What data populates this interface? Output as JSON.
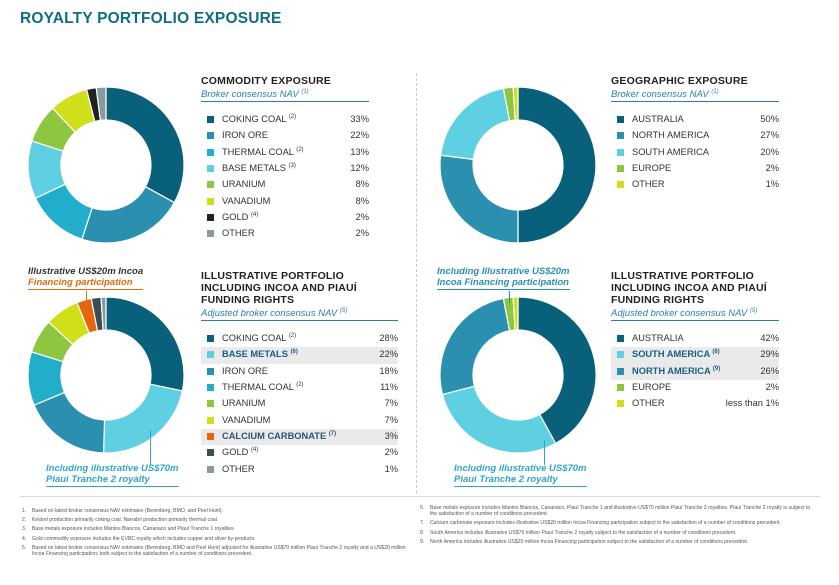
{
  "page": {
    "title": "ROYALTY PORTFOLIO EXPOSURE"
  },
  "colors": {
    "dark_teal": "#08607a",
    "mid_blue": "#2b8fb0",
    "cyan": "#22aecb",
    "light_cyan": "#5ed0e2",
    "green": "#8dc63f",
    "lime": "#cfdf1a",
    "black": "#222222",
    "grey": "#8a9ba0",
    "orange": "#e5660f",
    "slate": "#3a4e57"
  },
  "chart_data": [
    {
      "type": "pie",
      "title": "COMMODITY EXPOSURE",
      "subtitle": "Broker consensus NAV",
      "subtitle_ref": "(1)",
      "slices": [
        {
          "label": "COKING COAL",
          "ref": "(2)",
          "value": 33,
          "display": "33%",
          "color": "#08607a"
        },
        {
          "label": "IRON ORE",
          "ref": "",
          "value": 22,
          "display": "22%",
          "color": "#2b8fb0"
        },
        {
          "label": "THERMAL COAL",
          "ref": "(2)",
          "value": 13,
          "display": "13%",
          "color": "#22aecb"
        },
        {
          "label": "BASE METALS",
          "ref": "(3)",
          "value": 12,
          "display": "12%",
          "color": "#5ed0e2"
        },
        {
          "label": "URANIUM",
          "ref": "",
          "value": 8,
          "display": "8%",
          "color": "#8dc63f"
        },
        {
          "label": "VANADIUM",
          "ref": "",
          "value": 8,
          "display": "8%",
          "color": "#cfdf1a"
        },
        {
          "label": "GOLD",
          "ref": "(4)",
          "value": 2,
          "display": "2%",
          "color": "#222222"
        },
        {
          "label": "OTHER",
          "ref": "",
          "value": 2,
          "display": "2%",
          "color": "#8a9ba0"
        }
      ]
    },
    {
      "type": "pie",
      "title": "GEOGRAPHIC EXPOSURE",
      "subtitle": "Broker consensus NAV",
      "subtitle_ref": "(1)",
      "slices": [
        {
          "label": "AUSTRALIA",
          "ref": "",
          "value": 50,
          "display": "50%",
          "color": "#08607a"
        },
        {
          "label": "NORTH AMERICA",
          "ref": "",
          "value": 27,
          "display": "27%",
          "color": "#2b8fb0"
        },
        {
          "label": "SOUTH AMERICA",
          "ref": "",
          "value": 20,
          "display": "20%",
          "color": "#5ed0e2"
        },
        {
          "label": "EUROPE",
          "ref": "",
          "value": 2,
          "display": "2%",
          "color": "#8dc63f"
        },
        {
          "label": "OTHER",
          "ref": "",
          "value": 1,
          "display": "1%",
          "color": "#cfdf1a"
        }
      ]
    },
    {
      "type": "pie",
      "title": "ILLUSTRATIVE PORTFOLIO INCLUDING INCOA AND PIAUÍ FUNDING RIGHTS",
      "subtitle": "Adjusted broker consensus NAV",
      "subtitle_ref": "(5)",
      "slices": [
        {
          "label": "COKING COAL",
          "ref": "(2)",
          "value": 28,
          "display": "28%",
          "color": "#08607a"
        },
        {
          "label": "BASE METALS",
          "ref": "(6)",
          "value": 22,
          "display": "22%",
          "color": "#5ed0e2",
          "highlight": true
        },
        {
          "label": "IRON ORE",
          "ref": "",
          "value": 18,
          "display": "18%",
          "color": "#2b8fb0"
        },
        {
          "label": "THERMAL COAL",
          "ref": "(2)",
          "value": 11,
          "display": "11%",
          "color": "#22aecb"
        },
        {
          "label": "URANIUM",
          "ref": "",
          "value": 7,
          "display": "7%",
          "color": "#8dc63f"
        },
        {
          "label": "VANADIUM",
          "ref": "",
          "value": 7,
          "display": "7%",
          "color": "#cfdf1a"
        },
        {
          "label": "CALCIUM CARBONATE",
          "ref": "(7)",
          "value": 3,
          "display": "3%",
          "color": "#e5660f",
          "highlight": true
        },
        {
          "label": "GOLD",
          "ref": "(4)",
          "value": 2,
          "display": "2%",
          "color": "#3a4e57"
        },
        {
          "label": "OTHER",
          "ref": "",
          "value": 1,
          "display": "1%",
          "color": "#8a9ba0"
        }
      ]
    },
    {
      "type": "pie",
      "title": "ILLUSTRATIVE PORTFOLIO INCLUDING INCOA AND PIAUÍ FUNDING RIGHTS",
      "subtitle": "Adjusted broker consensus NAV",
      "subtitle_ref": "(5)",
      "slices": [
        {
          "label": "AUSTRALIA",
          "ref": "",
          "value": 42,
          "display": "42%",
          "color": "#08607a"
        },
        {
          "label": "SOUTH AMERICA",
          "ref": "(8)",
          "value": 29,
          "display": "29%",
          "color": "#5ed0e2",
          "highlight": true
        },
        {
          "label": "NORTH AMERICA",
          "ref": "(9)",
          "value": 26,
          "display": "26%",
          "color": "#2b8fb0",
          "highlight": true
        },
        {
          "label": "EUROPE",
          "ref": "",
          "value": 2,
          "display": "2%",
          "color": "#8dc63f"
        },
        {
          "label": "OTHER",
          "ref": "",
          "value": 1,
          "display": "less than 1%",
          "color": "#cfdf1a"
        }
      ]
    }
  ],
  "callouts": {
    "incoa_left": [
      "Illustrative US$20m Incoa",
      "Financing participation"
    ],
    "piaui_left": [
      "Including illustrative US$70m",
      "Piauí Tranche 2 royalty"
    ],
    "incoa_right": [
      "Including Illustrative US$20m",
      "Incoa Financing participation"
    ],
    "piaui_right": [
      "Including illustrative US$70m",
      "Piauí Tranche 2 royalty"
    ]
  },
  "footnotes": {
    "left": [
      {
        "n": "1.",
        "text": "Based on latest broker consensus NAV estimates (Berenberg, BMO, and Peel Hunt)."
      },
      {
        "n": "2.",
        "text": "Kestrel production primarily coking coal. Narrabri production primarily thermal coal."
      },
      {
        "n": "3.",
        "text": "Base metals exposure includes Mantos Blancos, Canariaco and Piauí Tranche 1 royalties."
      },
      {
        "n": "4.",
        "text": "Gold commodity exposure includes the EVBC royalty which includes copper and silver by-products."
      },
      {
        "n": "5.",
        "text": "Based on latest broker consensus NAV estimates (Berenberg, BMO and Peel Hunt) adjusted for illustrative US$70 million Piauí Tranche 2 royalty and a US$20 million Incoa Financing participation; both subject to the satisfaction of a number of conditions precedent."
      }
    ],
    "right": [
      {
        "n": "6.",
        "text": "Base metals exposure includes Mantos Blancos, Canariaco, Piauí Tranche 1 and illustrative US$70 million Piauí Tranche 2 royalties. Piauí Tranche 2 royalty is subject to the satisfaction of a number of conditions precedent."
      },
      {
        "n": "7.",
        "text": "Calcium carbonate exposure includes illustrative US$20 million Incoa Financing participation subject to the satisfaction of a number of conditions precedent."
      },
      {
        "n": "8.",
        "text": "South America includes illustrative US$70 million Piauí Tranche 2 royalty subject to the satisfaction of a number of conditions precedent."
      },
      {
        "n": "9.",
        "text": "North America includes illustrative US$20 million Incoa Financing participation subject to the satisfaction of a number of conditions precedent."
      }
    ]
  }
}
